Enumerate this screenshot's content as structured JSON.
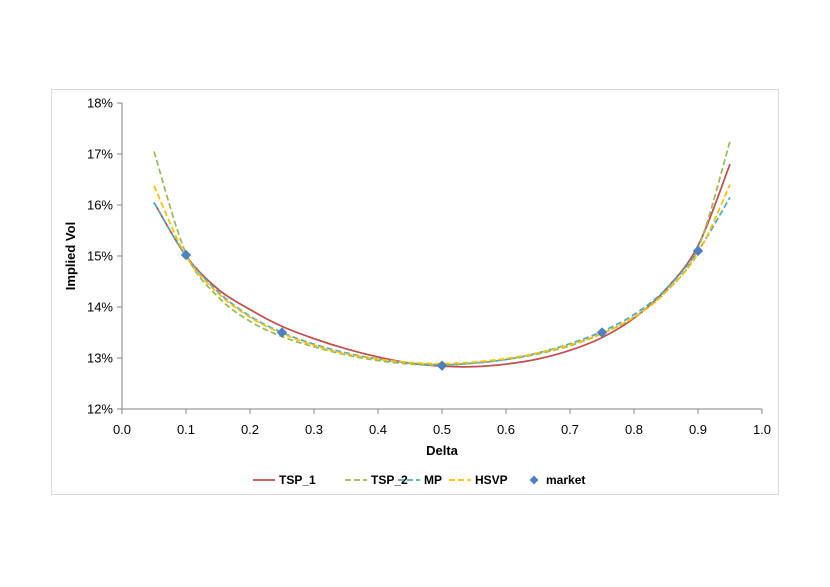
{
  "chart_data": {
    "type": "line",
    "title": "",
    "xlabel": "Delta",
    "ylabel": "Implied Vol",
    "xlim": [
      0.0,
      1.0
    ],
    "ylim": [
      12,
      18
    ],
    "x_ticks": [
      "0.0",
      "0.1",
      "0.2",
      "0.3",
      "0.4",
      "0.5",
      "0.6",
      "0.7",
      "0.8",
      "0.9",
      "1.0"
    ],
    "y_ticks": [
      "12%",
      "13%",
      "14%",
      "15%",
      "16%",
      "17%",
      "18%"
    ],
    "grid": false,
    "legend_position": "bottom",
    "series": [
      {
        "name": "TSP_1",
        "style": "solid",
        "color": "#c0504d",
        "x": [
          0.05,
          0.1,
          0.15,
          0.2,
          0.25,
          0.3,
          0.35,
          0.4,
          0.45,
          0.5,
          0.55,
          0.6,
          0.65,
          0.7,
          0.75,
          0.8,
          0.85,
          0.9,
          0.95
        ],
        "y": [
          16.05,
          15.0,
          14.35,
          13.95,
          13.62,
          13.38,
          13.18,
          13.02,
          12.9,
          12.84,
          12.83,
          12.88,
          12.98,
          13.15,
          13.4,
          13.78,
          14.35,
          15.2,
          16.8
        ]
      },
      {
        "name": "TSP_2",
        "style": "dashed",
        "color": "#9bbb59",
        "x": [
          0.05,
          0.1,
          0.15,
          0.2,
          0.25,
          0.3,
          0.35,
          0.4,
          0.45,
          0.5,
          0.55,
          0.6,
          0.65,
          0.7,
          0.75,
          0.8,
          0.85,
          0.9,
          0.95
        ],
        "y": [
          17.05,
          15.05,
          14.2,
          13.72,
          13.42,
          13.22,
          13.06,
          12.95,
          12.88,
          12.86,
          12.9,
          12.97,
          13.08,
          13.24,
          13.48,
          13.8,
          14.3,
          15.15,
          17.25
        ]
      },
      {
        "name": "MP",
        "style": "dashed",
        "color": "#4bacc6",
        "x": [
          0.05,
          0.1,
          0.15,
          0.2,
          0.25,
          0.3,
          0.35,
          0.4,
          0.45,
          0.5,
          0.55,
          0.6,
          0.65,
          0.7,
          0.75,
          0.8,
          0.85,
          0.9,
          0.95
        ],
        "y": [
          16.05,
          15.0,
          14.3,
          13.82,
          13.5,
          13.27,
          13.1,
          12.98,
          12.9,
          12.87,
          12.9,
          12.97,
          13.1,
          13.28,
          13.52,
          13.85,
          14.35,
          15.1,
          16.15
        ]
      },
      {
        "name": "HSVP",
        "style": "dashed",
        "color": "#ffc000",
        "x": [
          0.05,
          0.1,
          0.15,
          0.2,
          0.25,
          0.3,
          0.35,
          0.4,
          0.45,
          0.5,
          0.55,
          0.6,
          0.65,
          0.7,
          0.75,
          0.8,
          0.85,
          0.9,
          0.95
        ],
        "y": [
          16.38,
          15.0,
          14.27,
          13.8,
          13.48,
          13.25,
          13.08,
          12.98,
          12.91,
          12.89,
          12.92,
          12.99,
          13.1,
          13.26,
          13.48,
          13.8,
          14.3,
          15.05,
          16.4
        ]
      },
      {
        "name": "market",
        "style": "markers",
        "color": "#4f81bd",
        "x": [
          0.1,
          0.25,
          0.5,
          0.75,
          0.9
        ],
        "y": [
          15.02,
          13.5,
          12.85,
          13.5,
          15.1
        ]
      }
    ]
  }
}
